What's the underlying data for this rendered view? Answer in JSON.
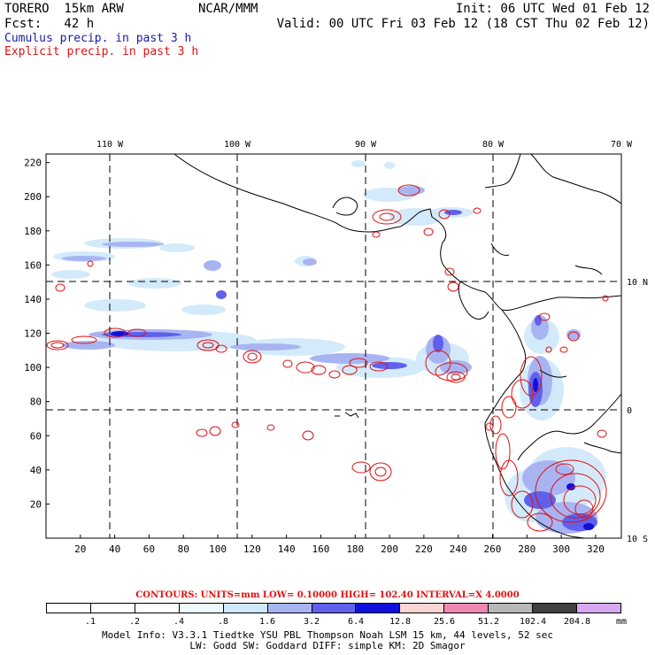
{
  "header": {
    "model": "TORERO  15km ARW",
    "org": "NCAR/MMM",
    "init": "Init: 06 UTC Wed 01 Feb 12",
    "fcst": "Fcst:   42 h",
    "valid": "Valid: 00 UTC Fri 03 Feb 12 (18 CST Thu 02 Feb 12)",
    "cumulus": "Cumulus precip. in past 3 h",
    "explicit": "Explicit precip. in past 3 h"
  },
  "colors": {
    "cumulus_text": "#1a1aa8",
    "explicit_text": "#e01010",
    "contour_red": "#e01010"
  },
  "axes": {
    "top_labels": [
      "110 W",
      "100 W",
      "90 W",
      "80 W",
      "70 W"
    ],
    "right_labels": [
      "10 N",
      "0",
      "10 S"
    ],
    "left_ticks": [
      20,
      40,
      60,
      80,
      100,
      120,
      140,
      160,
      180,
      200,
      220
    ],
    "bottom_ticks": [
      20,
      40,
      60,
      80,
      100,
      120,
      140,
      160,
      180,
      200,
      220,
      240,
      260,
      280,
      300,
      320
    ],
    "x_range": [
      0,
      335
    ],
    "y_range": [
      0,
      225
    ]
  },
  "contours_line": "CONTOURS:  UNITS=mm  LOW= 0.10000     HIGH=  102.40     INTERVAL=X  4.0000",
  "legend": {
    "labels": [
      ".1",
      ".2",
      ".4",
      ".8",
      "1.6",
      "3.2",
      "6.4",
      "12.8",
      "25.6",
      "51.2",
      "102.4",
      "204.8"
    ],
    "unit": "mm",
    "colors": [
      "#ffffff",
      "#ffffff",
      "#ffffff",
      "#eefcff",
      "#cfe8fb",
      "#a8b4f2",
      "#6060ec",
      "#1010dc",
      "#fbd4d4",
      "#ef88b0",
      "#b8b8b8",
      "#404040",
      "#d8a8f2"
    ]
  },
  "model_info": {
    "line1": "Model Info: V3.3.1    Tiedtke YSU PBL  Thompson     Noah LSM  15 km,    44 levels,    52 sec",
    "line2": "LW: Godd SW: Goddard DIFF: simple KM: 2D Smagor"
  }
}
